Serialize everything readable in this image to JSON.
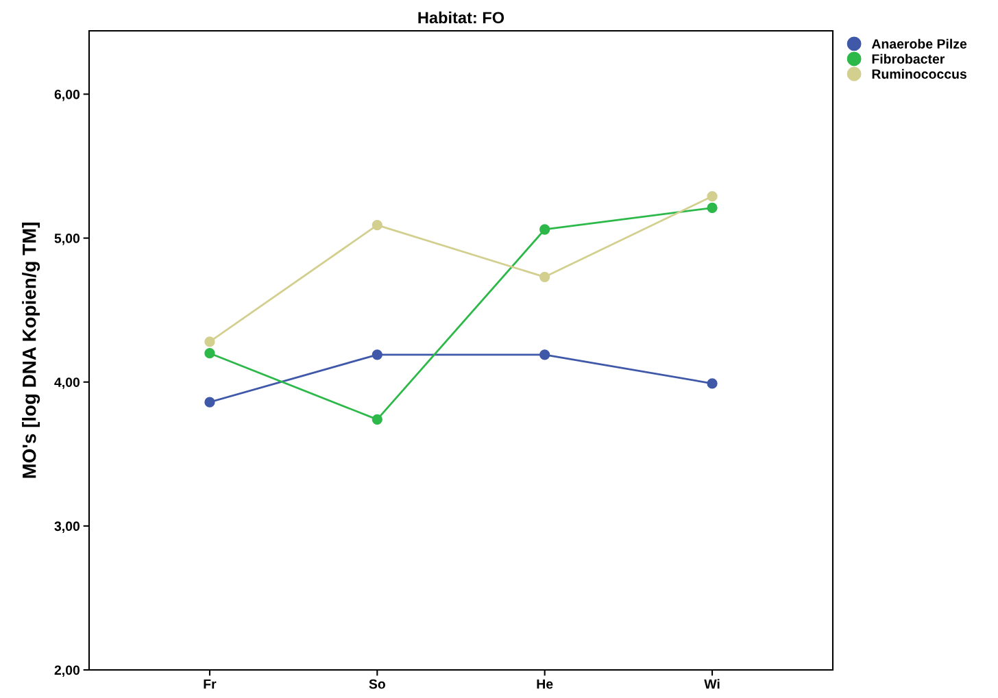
{
  "chart_data": {
    "type": "line",
    "title": "Habitat: FO",
    "ylabel": "MO's [log DNA Kopien/g TM]",
    "categories": [
      "Fr",
      "So",
      "He",
      "Wi"
    ],
    "series": [
      {
        "name": "Anaerobe Pilze",
        "color": "#3f58a8",
        "values": [
          3.86,
          4.19,
          4.19,
          3.99
        ]
      },
      {
        "name": "Fibrobacter",
        "color": "#2db84a",
        "values": [
          4.2,
          3.74,
          5.06,
          5.21
        ]
      },
      {
        "name": "Ruminococcus",
        "color": "#d2cf8f",
        "values": [
          4.28,
          5.09,
          4.73,
          5.29
        ]
      }
    ],
    "ylim": [
      2,
      6.44
    ],
    "yticks": [
      {
        "value": 2,
        "label": "2,00"
      },
      {
        "value": 3,
        "label": "3,00"
      },
      {
        "value": 4,
        "label": "4,00"
      },
      {
        "value": 5,
        "label": "5,00"
      },
      {
        "value": 6,
        "label": "6,00"
      }
    ],
    "marker": "circle",
    "line_style": "solid",
    "grid": false,
    "legend": "top right"
  }
}
